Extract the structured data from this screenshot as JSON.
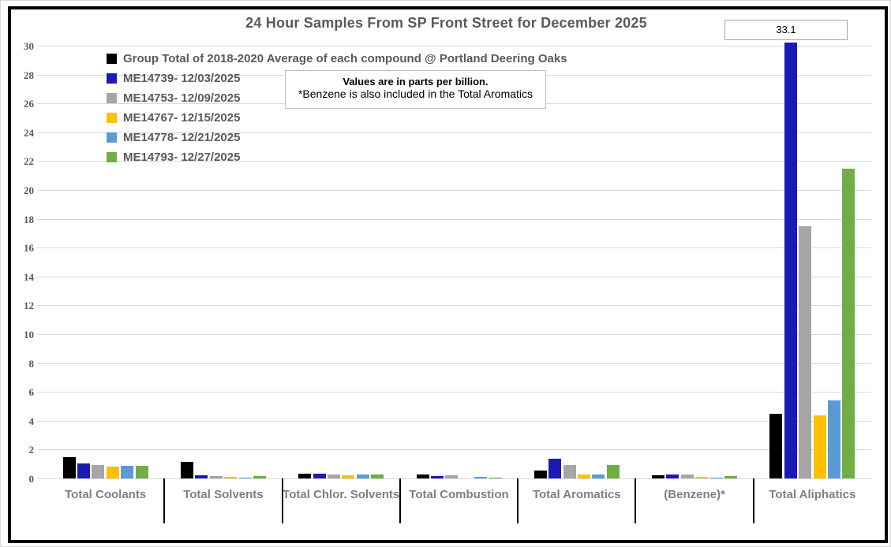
{
  "chart_data": {
    "type": "bar",
    "title": "24 Hour Samples From SP Front Street for December 2025",
    "categories": [
      "Total Coolants",
      "Total Solvents",
      "Total Chlor. Solvents",
      "Total Combustion",
      "Total Aromatics",
      "(Benzene)*",
      "Total Aliphatics"
    ],
    "series": [
      {
        "name": "Group Total of 2018-2020 Average of each compound @ Portland Deering Oaks",
        "color": "#000000",
        "values": [
          1.5,
          1.15,
          0.35,
          0.25,
          0.55,
          0.2,
          4.5
        ]
      },
      {
        "name": "ME14739- 12/03/2025",
        "color": "#1c1ab5",
        "values": [
          1.05,
          0.2,
          0.35,
          0.15,
          1.35,
          0.3,
          33.1
        ]
      },
      {
        "name": "ME14753- 12/09/2025",
        "color": "#a6a6a6",
        "values": [
          0.95,
          0.15,
          0.25,
          0.2,
          0.95,
          0.25,
          17.5
        ]
      },
      {
        "name": "ME14767- 12/15/2025",
        "color": "#ffc000",
        "values": [
          0.8,
          0.1,
          0.2,
          0,
          0.25,
          0.1,
          4.35
        ]
      },
      {
        "name": "ME14778- 12/21/2025",
        "color": "#5b9bd5",
        "values": [
          0.9,
          0.08,
          0.3,
          0.1,
          0.3,
          0.08,
          5.4
        ]
      },
      {
        "name": "ME14793- 12/27/2025",
        "color": "#70ad47",
        "values": [
          0.85,
          0.15,
          0.25,
          0.08,
          0.95,
          0.18,
          21.5
        ]
      }
    ],
    "ylim": [
      0,
      30
    ],
    "ytick_step": 2,
    "grid": true,
    "legend_position": "top-left-inside",
    "annotations": {
      "note_line1": "Values are in parts per billion.",
      "note_line2": "*Benzene is also included in the Total Aromatics",
      "clipped_bar_label": "33.1",
      "clipped_bar": {
        "category": "Total Aliphatics",
        "series": "ME14739- 12/03/2025",
        "value": 33.1
      }
    }
  }
}
